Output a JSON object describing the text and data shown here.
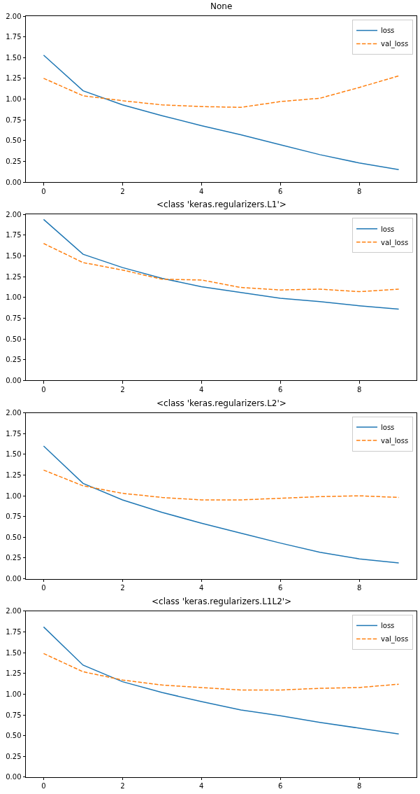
{
  "chart_data": [
    {
      "type": "line",
      "title": "None",
      "x": [
        0,
        1,
        2,
        3,
        4,
        5,
        6,
        7,
        8,
        9
      ],
      "series": [
        {
          "name": "loss",
          "color": "#1f77b4",
          "line_style": "solid",
          "values": [
            1.53,
            1.1,
            0.93,
            0.8,
            0.68,
            0.57,
            0.45,
            0.33,
            0.23,
            0.15
          ]
        },
        {
          "name": "val_loss",
          "color": "#ff7f0e",
          "line_style": "dashed",
          "values": [
            1.25,
            1.04,
            0.98,
            0.93,
            0.91,
            0.9,
            0.97,
            1.01,
            1.14,
            1.28
          ]
        }
      ],
      "xlim": [
        -0.45,
        9.45
      ],
      "xticks": [
        0,
        2,
        4,
        6,
        8
      ],
      "ylim": [
        0,
        2
      ],
      "yticks": [
        {
          "value": 0,
          "label": "0.00"
        },
        0.25,
        {
          "value": 0.5,
          "label": "0.50"
        },
        0.75,
        {
          "value": 1,
          "label": "1.00"
        },
        1.25,
        {
          "value": 1.5,
          "label": "1.50"
        },
        1.75,
        {
          "value": 2,
          "label": "2.00"
        }
      ],
      "legend": "top right"
    },
    {
      "type": "line",
      "title": "<class 'keras.regularizers.L1'>",
      "x": [
        0,
        1,
        2,
        3,
        4,
        5,
        6,
        7,
        8,
        9
      ],
      "series": [
        {
          "name": "loss",
          "color": "#1f77b4",
          "line_style": "solid",
          "values": [
            1.94,
            1.52,
            1.36,
            1.23,
            1.13,
            1.06,
            0.99,
            0.95,
            0.9,
            0.86
          ]
        },
        {
          "name": "val_loss",
          "color": "#ff7f0e",
          "line_style": "dashed",
          "values": [
            1.65,
            1.42,
            1.33,
            1.22,
            1.21,
            1.12,
            1.09,
            1.1,
            1.07,
            1.1
          ]
        }
      ],
      "xlim": [
        -0.45,
        9.45
      ],
      "xticks": [
        0,
        2,
        4,
        6,
        8
      ],
      "ylim": [
        0,
        2
      ],
      "yticks": [
        {
          "value": 0,
          "label": "0.00"
        },
        0.25,
        {
          "value": 0.5,
          "label": "0.50"
        },
        0.75,
        {
          "value": 1,
          "label": "1.00"
        },
        1.25,
        {
          "value": 1.5,
          "label": "1.50"
        },
        1.75,
        {
          "value": 2,
          "label": "2.00"
        }
      ],
      "legend": "top right"
    },
    {
      "type": "line",
      "title": "<class 'keras.regularizers.L2'>",
      "x": [
        0,
        1,
        2,
        3,
        4,
        5,
        6,
        7,
        8,
        9
      ],
      "series": [
        {
          "name": "loss",
          "color": "#1f77b4",
          "line_style": "solid",
          "values": [
            1.6,
            1.15,
            0.95,
            0.8,
            0.67,
            0.55,
            0.43,
            0.32,
            0.24,
            0.19
          ]
        },
        {
          "name": "val_loss",
          "color": "#ff7f0e",
          "line_style": "dashed",
          "values": [
            1.31,
            1.12,
            1.03,
            0.98,
            0.95,
            0.95,
            0.97,
            0.99,
            1.0,
            0.98
          ]
        }
      ],
      "xlim": [
        -0.45,
        9.45
      ],
      "xticks": [
        0,
        2,
        4,
        6,
        8
      ],
      "ylim": [
        0,
        2
      ],
      "yticks": [
        {
          "value": 0,
          "label": "0.00"
        },
        0.25,
        {
          "value": 0.5,
          "label": "0.50"
        },
        0.75,
        {
          "value": 1,
          "label": "1.00"
        },
        1.25,
        {
          "value": 1.5,
          "label": "1.50"
        },
        1.75,
        {
          "value": 2,
          "label": "2.00"
        }
      ],
      "legend": "top right"
    },
    {
      "type": "line",
      "title": "<class 'keras.regularizers.L1L2'>",
      "x": [
        0,
        1,
        2,
        3,
        4,
        5,
        6,
        7,
        8,
        9
      ],
      "series": [
        {
          "name": "loss",
          "color": "#1f77b4",
          "line_style": "solid",
          "values": [
            1.81,
            1.35,
            1.15,
            1.02,
            0.91,
            0.81,
            0.74,
            0.66,
            0.59,
            0.52
          ]
        },
        {
          "name": "val_loss",
          "color": "#ff7f0e",
          "line_style": "dashed",
          "values": [
            1.49,
            1.27,
            1.17,
            1.11,
            1.08,
            1.05,
            1.05,
            1.07,
            1.08,
            1.12
          ]
        }
      ],
      "xlim": [
        -0.45,
        9.45
      ],
      "xticks": [
        0,
        2,
        4,
        6,
        8
      ],
      "ylim": [
        0,
        2
      ],
      "yticks": [
        {
          "value": 0,
          "label": "0.00"
        },
        0.25,
        {
          "value": 0.5,
          "label": "0.50"
        },
        0.75,
        {
          "value": 1,
          "label": "1.00"
        },
        1.25,
        {
          "value": 1.5,
          "label": "1.50"
        },
        1.75,
        {
          "value": 2,
          "label": "2.00"
        }
      ],
      "legend": "top right"
    }
  ]
}
